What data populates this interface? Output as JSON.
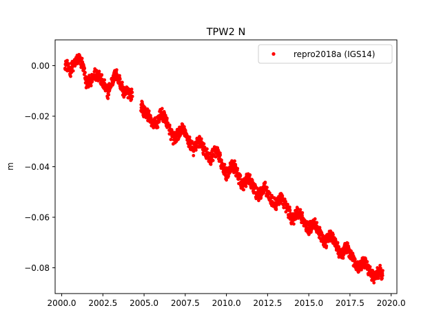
{
  "chart_data": {
    "type": "scatter",
    "title": "TPW2 N",
    "xlabel": "",
    "ylabel": "m",
    "xlim": [
      1999.6,
      2020.35
    ],
    "ylim": [
      -0.0902,
      0.0102
    ],
    "xticks": [
      2000.0,
      2002.5,
      2005.0,
      2007.5,
      2010.0,
      2012.5,
      2015.0,
      2017.5,
      2020.0
    ],
    "xtick_labels": [
      "2000.0",
      "2002.5",
      "2005.0",
      "2007.5",
      "2010.0",
      "2012.5",
      "2015.0",
      "2017.5",
      "2020.0"
    ],
    "yticks": [
      0.0,
      -0.02,
      -0.04,
      -0.06,
      -0.08
    ],
    "ytick_labels": [
      "0.00",
      "−0.02",
      "−0.04",
      "−0.06",
      "−0.08"
    ],
    "grid": false,
    "legend": {
      "position": "top-right"
    },
    "series": [
      {
        "name": "repro2018a (IGS14)",
        "color": "#ff0000",
        "marker": "point",
        "gap": [
          2004.3,
          2004.8
        ],
        "x": [
          2000.2,
          2000.5,
          2000.8,
          2001.0,
          2001.3,
          2001.5,
          2001.8,
          2002.0,
          2002.3,
          2002.5,
          2002.8,
          2003.0,
          2003.3,
          2003.5,
          2003.8,
          2004.0,
          2004.3,
          2004.8,
          2005.0,
          2005.3,
          2005.5,
          2005.8,
          2006.0,
          2006.3,
          2006.5,
          2006.8,
          2007.0,
          2007.3,
          2007.5,
          2007.8,
          2008.0,
          2008.3,
          2008.5,
          2008.8,
          2009.0,
          2009.3,
          2009.5,
          2009.8,
          2010.0,
          2010.3,
          2010.5,
          2010.8,
          2011.0,
          2011.3,
          2011.5,
          2011.8,
          2012.0,
          2012.3,
          2012.5,
          2012.8,
          2013.0,
          2013.3,
          2013.5,
          2013.8,
          2014.0,
          2014.3,
          2014.5,
          2014.8,
          2015.0,
          2015.3,
          2015.5,
          2015.8,
          2016.0,
          2016.3,
          2016.5,
          2016.8,
          2017.0,
          2017.3,
          2017.5,
          2017.8,
          2018.0,
          2018.3,
          2018.5,
          2018.8,
          2019.0,
          2019.3,
          2019.5
        ],
        "y": [
          0.001,
          -0.002,
          0.001,
          0.003,
          0.0,
          -0.007,
          -0.006,
          -0.003,
          -0.004,
          -0.007,
          -0.011,
          -0.007,
          -0.003,
          -0.006,
          -0.011,
          -0.01,
          -0.012,
          -0.016,
          -0.018,
          -0.02,
          -0.023,
          -0.023,
          -0.019,
          -0.021,
          -0.025,
          -0.029,
          -0.028,
          -0.025,
          -0.027,
          -0.031,
          -0.033,
          -0.03,
          -0.031,
          -0.035,
          -0.037,
          -0.034,
          -0.035,
          -0.04,
          -0.043,
          -0.04,
          -0.04,
          -0.045,
          -0.047,
          -0.044,
          -0.046,
          -0.05,
          -0.051,
          -0.048,
          -0.05,
          -0.054,
          -0.055,
          -0.052,
          -0.054,
          -0.058,
          -0.061,
          -0.058,
          -0.059,
          -0.063,
          -0.065,
          -0.062,
          -0.064,
          -0.068,
          -0.07,
          -0.067,
          -0.069,
          -0.073,
          -0.075,
          -0.072,
          -0.074,
          -0.078,
          -0.08,
          -0.078,
          -0.079,
          -0.083,
          -0.084,
          -0.081,
          -0.083
        ]
      }
    ]
  }
}
